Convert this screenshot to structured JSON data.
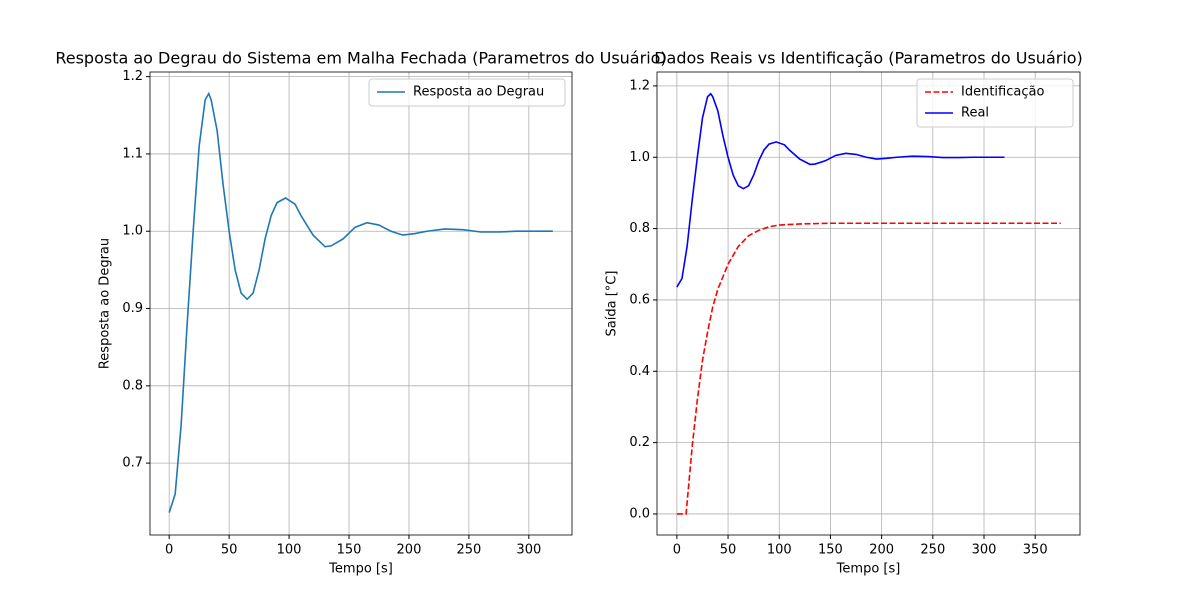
{
  "chart_data": [
    {
      "type": "line",
      "title": "Resposta ao Degrau do Sistema em Malha Fechada (Parametros do Usuário)",
      "xlabel": "Tempo [s]",
      "ylabel": "Resposta ao Degrau",
      "series": [
        {
          "name": "Resposta ao Degrau",
          "color": "#1f77b4",
          "linestyle": "solid",
          "x": [
            0,
            5,
            10,
            15,
            20,
            25,
            30,
            33,
            35,
            40,
            45,
            50,
            55,
            60,
            65,
            70,
            75,
            80,
            85,
            90,
            97,
            105,
            110,
            120,
            130,
            135,
            145,
            155,
            165,
            175,
            185,
            195,
            205,
            215,
            230,
            245,
            260,
            275,
            290,
            305,
            320
          ],
          "values": [
            0.636,
            0.66,
            0.75,
            0.88,
            1.0,
            1.11,
            1.17,
            1.178,
            1.17,
            1.13,
            1.06,
            1.0,
            0.95,
            0.92,
            0.912,
            0.92,
            0.95,
            0.99,
            1.02,
            1.037,
            1.043,
            1.035,
            1.02,
            0.995,
            0.98,
            0.981,
            0.99,
            1.005,
            1.011,
            1.008,
            1.0,
            0.995,
            0.997,
            1.0,
            1.003,
            1.002,
            0.999,
            0.999,
            1.0,
            1.0,
            1.0
          ]
        }
      ],
      "xlim": [
        -16,
        336
      ],
      "ylim": [
        0.607,
        1.206
      ],
      "xticks": [
        0,
        50,
        100,
        150,
        200,
        250,
        300
      ],
      "yticks": [
        0.7,
        0.8,
        0.9,
        {
          "value": 1,
          "label": "1.0"
        },
        1.1,
        1.2
      ],
      "grid": true,
      "legend": "upper right"
    },
    {
      "type": "line",
      "title": "Dados Reais vs Identificação (Parametros do Usuário)",
      "xlabel": "Tempo [s]",
      "ylabel": "Saída [°C]",
      "series": [
        {
          "name": "Identificação",
          "color": "#ff0000",
          "linestyle": "dashed",
          "x": [
            0,
            9,
            15,
            20,
            25,
            30,
            35,
            40,
            50,
            60,
            70,
            80,
            90,
            100,
            120,
            150,
            200,
            250,
            300,
            375
          ],
          "values": [
            0,
            0,
            0.19,
            0.32,
            0.43,
            0.51,
            0.58,
            0.63,
            0.7,
            0.75,
            0.78,
            0.795,
            0.805,
            0.81,
            0.813,
            0.815,
            0.815,
            0.815,
            0.815,
            0.815
          ]
        },
        {
          "name": "Real",
          "color": "#0000ff",
          "linestyle": "solid",
          "x": [
            0,
            5,
            10,
            15,
            20,
            25,
            30,
            33,
            35,
            40,
            45,
            50,
            55,
            60,
            65,
            70,
            75,
            80,
            85,
            90,
            97,
            105,
            110,
            120,
            130,
            135,
            145,
            155,
            165,
            175,
            185,
            195,
            205,
            215,
            230,
            245,
            260,
            275,
            290,
            305,
            320
          ],
          "values": [
            0.636,
            0.66,
            0.75,
            0.88,
            1.0,
            1.11,
            1.17,
            1.178,
            1.17,
            1.13,
            1.06,
            1.0,
            0.95,
            0.92,
            0.912,
            0.92,
            0.95,
            0.99,
            1.02,
            1.037,
            1.043,
            1.035,
            1.02,
            0.995,
            0.98,
            0.981,
            0.99,
            1.005,
            1.011,
            1.008,
            1.0,
            0.995,
            0.997,
            1.0,
            1.003,
            1.002,
            0.999,
            0.999,
            1.0,
            1.0,
            1.0
          ]
        }
      ],
      "xlim": [
        -19.4,
        393.75
      ],
      "ylim": [
        -0.059,
        1.239
      ],
      "xticks": [
        0,
        50,
        100,
        150,
        200,
        250,
        300,
        350
      ],
      "yticks": [
        {
          "value": 0,
          "label": "0.0"
        },
        0.2,
        0.4,
        0.6,
        0.8,
        {
          "value": 1,
          "label": "1.0"
        },
        1.2
      ],
      "grid": true,
      "legend": "upper right"
    }
  ]
}
